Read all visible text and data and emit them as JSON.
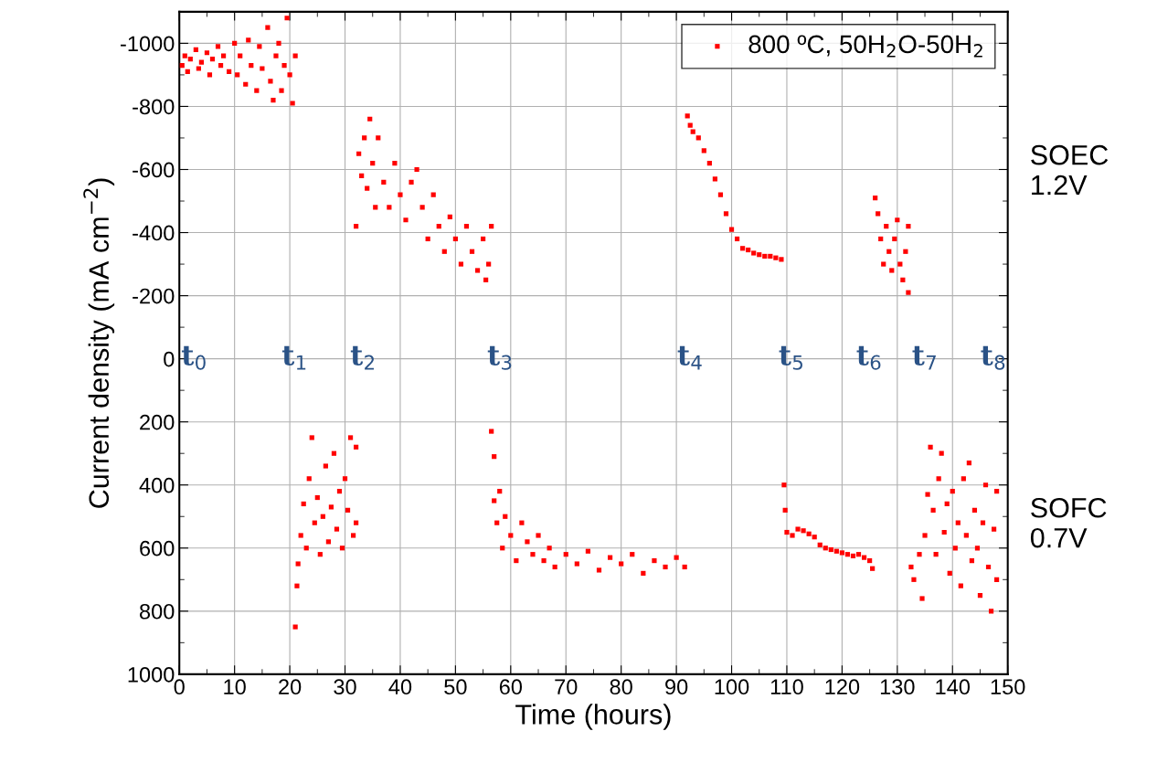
{
  "chart_data": {
    "type": "scatter",
    "xlabel": "Time (hours)",
    "ylabel": "Current density (mA cm$^{−2}$)",
    "xlim": [
      0,
      150
    ],
    "ylim": [
      1000,
      -1100
    ],
    "xticks": [
      0,
      10,
      20,
      30,
      40,
      50,
      60,
      70,
      80,
      90,
      100,
      110,
      120,
      130,
      140,
      150
    ],
    "yticks": [
      -1000,
      -800,
      -600,
      -400,
      -200,
      0,
      200,
      400,
      600,
      800,
      1000
    ],
    "grid": true,
    "legend": "top right",
    "marker": "square",
    "annotations": [
      "t$_{0}$",
      "t$_{1}$",
      "t$_{2}$",
      "t$_{3}$",
      "t$_{4}$",
      "t$_{5}$",
      "t$_{6}$",
      "t$_{7}$",
      "t$_{8}$",
      "SOEC\n1.2V",
      "SOFC\n0.7V"
    ],
    "series": [
      {
        "name": "800 ºC, 50H$_{2}$O-50H$_{2}$",
        "color": "#ff0000",
        "x": [
          0.5,
          1,
          1.5,
          2,
          3,
          3.5,
          4,
          5,
          5.5,
          6,
          7,
          7.5,
          8,
          9,
          10,
          10.5,
          11,
          12,
          12.5,
          13,
          14,
          14.5,
          15,
          16,
          16.5,
          17,
          17.5,
          18,
          18.5,
          19,
          19.5,
          20,
          20.5,
          21,
          21,
          21.3,
          21.5,
          22,
          22.5,
          23,
          23.5,
          24,
          24.5,
          25,
          25.5,
          26,
          26.5,
          27,
          27.5,
          28,
          28.5,
          29,
          29.5,
          30,
          30.5,
          31,
          31.5,
          32,
          32,
          32,
          32.5,
          33,
          33.5,
          34,
          34.5,
          35,
          35.5,
          36,
          37,
          38,
          39,
          40,
          41,
          42,
          43,
          44,
          45,
          46,
          47,
          48,
          49,
          50,
          51,
          52,
          53,
          54,
          55,
          55.5,
          56,
          56.5,
          56.5,
          57,
          57,
          57.5,
          58,
          58.5,
          59,
          60,
          61,
          62,
          63,
          64,
          65,
          66,
          67,
          68,
          70,
          72,
          74,
          76,
          78,
          80,
          82,
          84,
          86,
          88,
          90,
          91.5,
          92,
          92.5,
          93,
          94,
          95,
          96,
          97,
          98,
          99,
          100,
          101,
          102,
          103,
          104,
          105,
          106,
          107,
          108,
          109,
          109.5,
          109.7,
          110,
          111,
          112,
          113,
          114,
          115,
          116,
          117,
          118,
          119,
          120,
          121,
          122,
          123,
          124,
          125,
          125.5,
          126,
          126.5,
          127,
          127.5,
          128,
          128.5,
          129,
          129.5,
          130,
          130.5,
          131,
          131.5,
          132,
          132,
          132.5,
          133,
          134,
          134.5,
          135,
          135.5,
          136,
          136.5,
          137,
          137.5,
          138,
          138.5,
          139,
          139.5,
          140,
          140.5,
          141,
          141.5,
          142,
          142.5,
          143,
          143.5,
          144,
          144.5,
          145,
          145.5,
          146,
          146.5,
          147,
          147.5,
          148,
          148
        ],
        "values": [
          -930,
          -960,
          -910,
          -950,
          -980,
          -920,
          -940,
          -970,
          -900,
          -950,
          -990,
          -930,
          -960,
          -910,
          -1000,
          -900,
          -960,
          -870,
          -1010,
          -930,
          -850,
          -990,
          -920,
          -1050,
          -880,
          -820,
          -960,
          -1000,
          -850,
          -930,
          -1080,
          -900,
          -810,
          -960,
          850,
          720,
          650,
          560,
          460,
          600,
          380,
          250,
          520,
          440,
          620,
          500,
          340,
          580,
          470,
          300,
          540,
          420,
          600,
          380,
          480,
          250,
          560,
          280,
          520,
          -420,
          -650,
          -580,
          -700,
          -540,
          -760,
          -620,
          -480,
          -700,
          -560,
          -480,
          -620,
          -520,
          -440,
          -560,
          -600,
          -480,
          -380,
          -520,
          -420,
          -340,
          -450,
          -380,
          -300,
          -420,
          -340,
          -280,
          -380,
          -250,
          -300,
          -420,
          230,
          310,
          450,
          520,
          420,
          600,
          500,
          560,
          640,
          520,
          580,
          620,
          560,
          640,
          600,
          660,
          620,
          650,
          610,
          670,
          630,
          650,
          620,
          680,
          640,
          660,
          630,
          660,
          -770,
          -740,
          -720,
          -700,
          -660,
          -620,
          -570,
          -520,
          -460,
          -410,
          -380,
          -350,
          -345,
          -335,
          -330,
          -325,
          -325,
          -320,
          -315,
          400,
          480,
          550,
          560,
          540,
          545,
          555,
          565,
          590,
          600,
          605,
          610,
          615,
          620,
          625,
          620,
          630,
          640,
          665,
          -510,
          -460,
          -380,
          -300,
          -420,
          -340,
          -280,
          -380,
          -440,
          -300,
          -250,
          -340,
          -210,
          -420,
          660,
          700,
          620,
          760,
          560,
          430,
          280,
          480,
          620,
          380,
          300,
          550,
          460,
          680,
          420,
          600,
          520,
          720,
          380,
          560,
          330,
          640,
          480,
          600,
          750,
          520,
          400,
          660,
          800,
          540,
          700,
          420
        ]
      }
    ]
  }
}
